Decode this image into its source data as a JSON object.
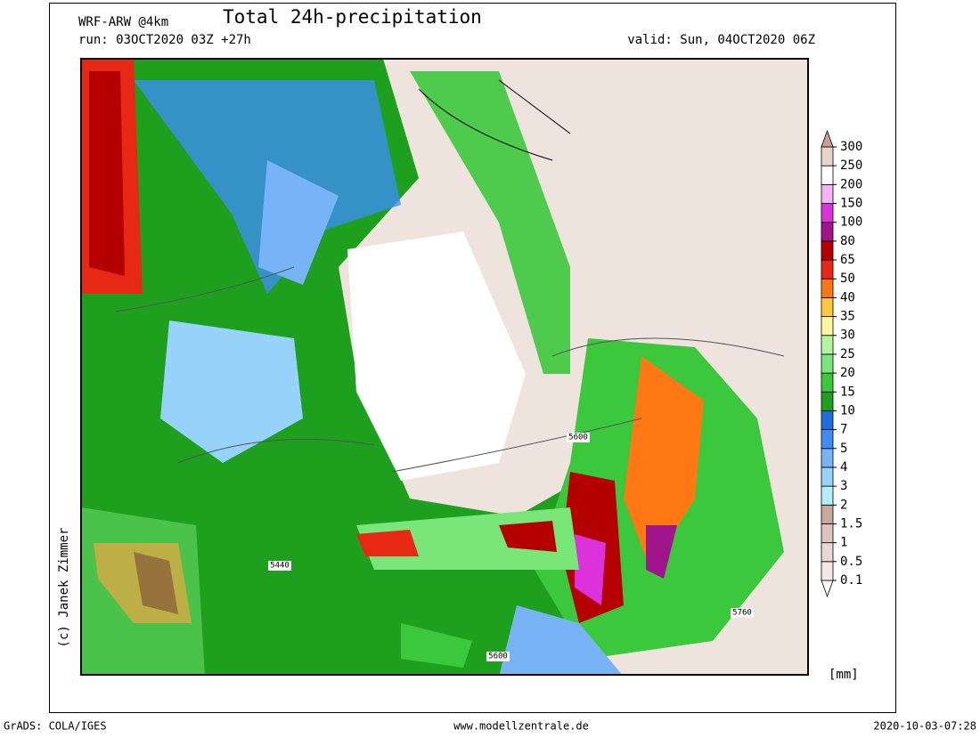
{
  "header": {
    "model": "WRF-ARW @4km",
    "title": "Total 24h-precipitation",
    "run": "run: 03OCT2020 03Z +27h",
    "valid": "valid: Sun, 04OCT2020 06Z"
  },
  "legend": {
    "levels": [
      0.1,
      0.5,
      1,
      1.5,
      2,
      3,
      4,
      5,
      7,
      10,
      15,
      20,
      25,
      30,
      35,
      40,
      50,
      65,
      80,
      100,
      150,
      200,
      250,
      300
    ],
    "colors": [
      "#ffffff",
      "#f3e9e4",
      "#e9d8d2",
      "#dcc3bb",
      "#c9a79c",
      "#b4ecf8",
      "#96d2fa",
      "#78b4f5",
      "#3c8ef0",
      "#1e6edc",
      "#1ea01e",
      "#3cc83c",
      "#78e678",
      "#b4f5a0",
      "#fff5a0",
      "#ffc83c",
      "#ff7814",
      "#e62814",
      "#b40000",
      "#a0148c",
      "#dc32dc",
      "#f5b4f5",
      "#ffffff",
      "#e8d4cc",
      "#c8a096"
    ],
    "unit": "[mm]"
  },
  "map": {
    "contours": [
      "5600",
      "5440",
      "5760",
      "5600"
    ]
  },
  "credit": "(c) Janek Zimmer",
  "footer": {
    "left": "GrADS: COLA/IGES",
    "center": "www.modellzentrale.de",
    "right": "2020-10-03-07:28"
  }
}
